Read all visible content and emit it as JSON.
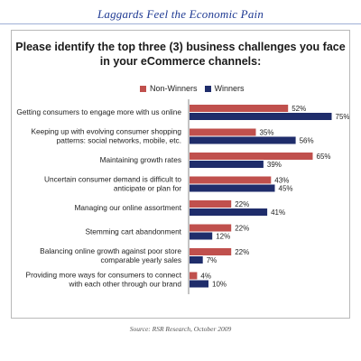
{
  "header": {
    "title": "Laggards Feel the Economic Pain"
  },
  "question": {
    "line1": "Please identify the top three (3) business challenges you face",
    "line2": "in your eCommerce channels:"
  },
  "colors": {
    "non_winners": "#c0504d",
    "winners": "#1f2d6b"
  },
  "chart_data": {
    "type": "bar",
    "orientation": "horizontal",
    "categories": [
      [
        "Getting consumers to engage more with us online"
      ],
      [
        "Keeping up with evolving consumer shopping",
        "patterns: social networks, mobile, etc."
      ],
      [
        "Maintaining growth rates"
      ],
      [
        "Uncertain consumer demand is difficult to",
        "anticipate or plan for"
      ],
      [
        "Managing our online assortment"
      ],
      [
        "Stemming cart abandonment"
      ],
      [
        "Balancing online growth against poor store",
        "comparable yearly sales"
      ],
      [
        "Providing more ways for consumers to connect",
        "with each other through our brand"
      ]
    ],
    "series": [
      {
        "name": "Non-Winners",
        "values": [
          52,
          35,
          65,
          43,
          22,
          22,
          22,
          4
        ],
        "labels": [
          "52%",
          "35%",
          "65%",
          "43%",
          "22%",
          "22%",
          "22%",
          "4%"
        ]
      },
      {
        "name": "Winners",
        "values": [
          75,
          56,
          39,
          45,
          41,
          12,
          7,
          10
        ],
        "labels": [
          "75%",
          "56%",
          "39%",
          "45%",
          "41%",
          "12%",
          "7%",
          "10%"
        ]
      }
    ],
    "xlim": [
      0,
      80
    ],
    "grid": false,
    "legend": "top"
  },
  "source": "Source: RSR Research, October 2009"
}
